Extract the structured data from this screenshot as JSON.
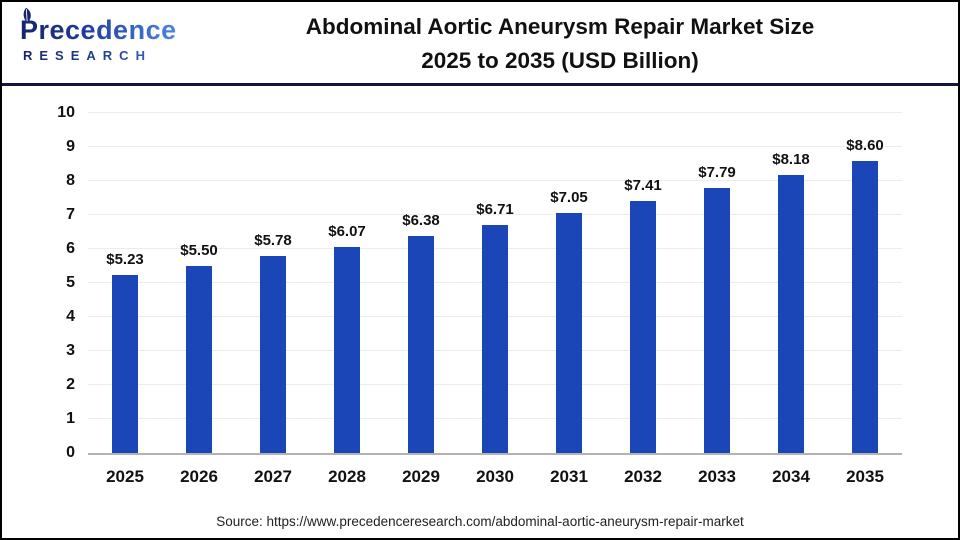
{
  "header": {
    "logo": {
      "brand": "Precedence",
      "subtitle": "RESEARCH",
      "color_dark": "#16246b",
      "color_light": "#4b87e2"
    },
    "title_line1": "Abdominal Aortic Aneurysm Repair Market Size",
    "title_line2": "2025 to 2035 (USD Billion)"
  },
  "chart_data": {
    "type": "bar",
    "title": "Abdominal Aortic Aneurysm Repair Market Size 2025 to 2035 (USD Billion)",
    "categories": [
      "2025",
      "2026",
      "2027",
      "2028",
      "2029",
      "2030",
      "2031",
      "2032",
      "2033",
      "2034",
      "2035"
    ],
    "values": [
      5.23,
      5.5,
      5.78,
      6.07,
      6.38,
      6.71,
      7.05,
      7.41,
      7.79,
      8.18,
      8.6
    ],
    "value_labels": [
      "$5.23",
      "$5.50",
      "$5.78",
      "$6.07",
      "$6.38",
      "$6.71",
      "$7.05",
      "$7.41",
      "$7.79",
      "$8.18",
      "$8.60"
    ],
    "xlabel": "",
    "ylabel": "",
    "ylim": [
      0,
      10
    ],
    "ytick_step": 1,
    "grid": true,
    "legend_position": "none",
    "bar_color": "#1a46b8",
    "axis_color": "#b3b3b3",
    "grid_color": "#ececec",
    "text_color": "#111111"
  },
  "footer": {
    "source": "Source: https://www.precedenceresearch.com/abdominal-aortic-aneurysm-repair-market"
  }
}
